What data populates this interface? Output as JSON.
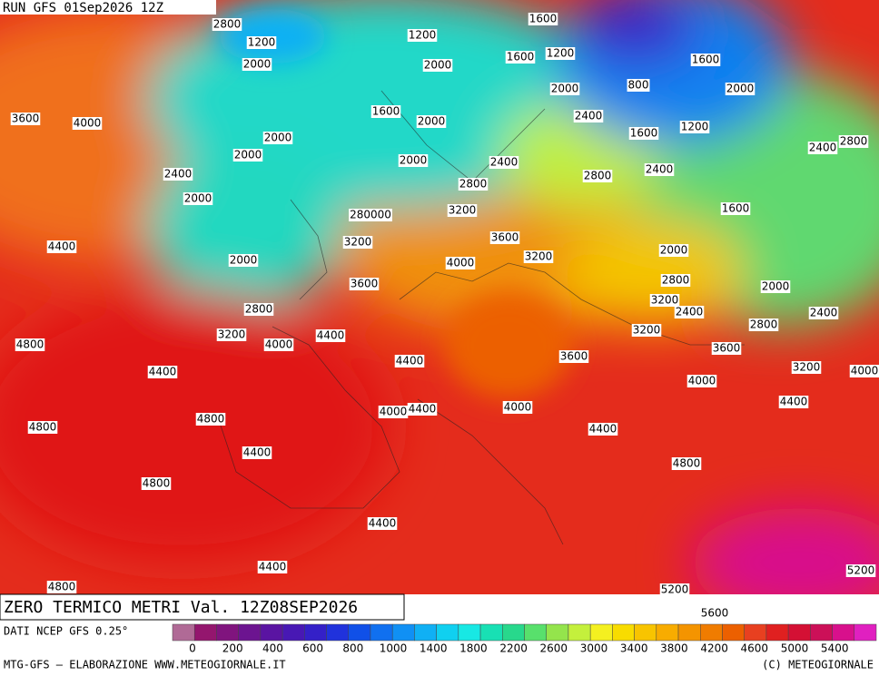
{
  "header": {
    "run": "RUN GFS 01Sep2026 12Z"
  },
  "map": {
    "contour_labels": [
      2800,
      1200,
      2000,
      1600,
      1200,
      2000,
      1600,
      1200,
      1600,
      800,
      2000,
      2000,
      3600,
      4000,
      1600,
      2000,
      2400,
      1200,
      1600,
      2000,
      2000,
      2000,
      2400,
      2400,
      2800,
      2400,
      2800,
      2400,
      2800,
      2000,
      3200,
      1600,
      280000,
      3600,
      3200,
      4400,
      2000,
      3200,
      4000,
      2000,
      2800,
      2000,
      3600,
      3200,
      2800,
      2400,
      2400,
      2800,
      3200,
      4400,
      3200,
      4000,
      4800,
      3600,
      3600,
      4400,
      4400,
      3200,
      4000,
      4000,
      4400,
      4000,
      4400,
      4000,
      4800,
      4800,
      4400,
      4400,
      4800,
      4800,
      4400,
      4400,
      4800,
      5200,
      5200,
      5600
    ]
  },
  "title": "ZERO TERMICO METRI Val. 12Z08SEP2026",
  "legend": {
    "source": "DATI NCEP GFS 0.25°",
    "colors": [
      "#b06a96",
      "#94166e",
      "#80147e",
      "#6c1490",
      "#5a14a2",
      "#4818b4",
      "#3420c8",
      "#2032dc",
      "#1050e8",
      "#1070f0",
      "#1090f4",
      "#10b0f4",
      "#10d0f0",
      "#18e8e4",
      "#18e0b4",
      "#28d88c",
      "#58e06c",
      "#94e44c",
      "#c4f03c",
      "#f4f020",
      "#f8dc00",
      "#f8c400",
      "#f8ac00",
      "#f49400",
      "#f07c00",
      "#ec6000",
      "#e84020",
      "#e02020",
      "#d41034",
      "#cc1058",
      "#d8108c",
      "#e020c0"
    ],
    "labels": [
      0,
      200,
      400,
      600,
      800,
      1000,
      1400,
      1800,
      2200,
      2600,
      3000,
      3400,
      3800,
      4200,
      4600,
      5000,
      5400
    ]
  },
  "footer": {
    "credit": "MTG-GFS — ELABORAZIONE WWW.METEOGIORNALE.IT",
    "copyright": "(C) METEOGIORNALE"
  }
}
